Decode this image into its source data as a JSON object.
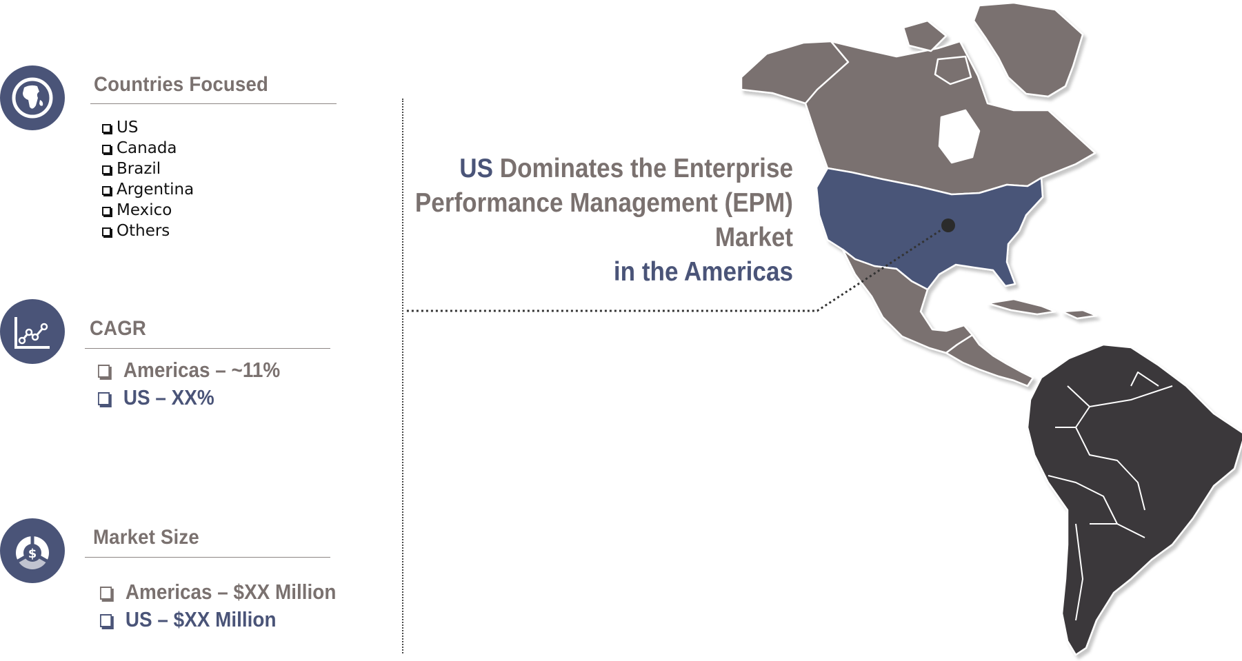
{
  "sections": {
    "countries": {
      "title": "Countries Focused",
      "items": [
        "US",
        "Canada",
        "Brazil",
        "Argentina",
        "Mexico",
        "Others"
      ]
    },
    "cagr": {
      "title": "CAGR",
      "items": [
        {
          "text": "Americas – ~11%",
          "color": "#7a716f"
        },
        {
          "text": "US – XX%",
          "color": "#4a5478"
        }
      ]
    },
    "market_size": {
      "title": "Market Size",
      "items": [
        {
          "text": "Americas – $XX Million",
          "color": "#7a716f"
        },
        {
          "text": "US – $XX Million",
          "color": "#4a5478"
        }
      ]
    }
  },
  "headline": {
    "highlight": "US",
    "line1_rest": " Dominates the Enterprise",
    "line2": "Performance Management (EPM)",
    "line3": "Market",
    "line4": "in the Americas"
  },
  "icons": {
    "countries": "globe-icon",
    "cagr": "line-chart-icon",
    "market_size": "money-bag-icon"
  },
  "colors": {
    "accent": "#4a5478",
    "text_gray": "#7a716f",
    "north_america": "#7a716f",
    "us_highlight": "#4a5478",
    "south_america": "#3b393a"
  }
}
